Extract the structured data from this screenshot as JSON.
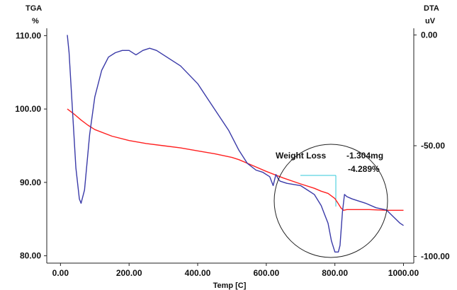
{
  "chart_data": {
    "type": "line",
    "title": "",
    "xlabel": "Temp  [C]",
    "left_axis": {
      "title": "TGA",
      "unit": "%",
      "ylim": [
        79,
        111
      ],
      "ticks": [
        {
          "v": 110,
          "t": "110.00"
        },
        {
          "v": 100,
          "t": "100.00"
        },
        {
          "v": 90,
          "t": "90.00"
        },
        {
          "v": 80,
          "t": "80.00"
        }
      ]
    },
    "right_axis": {
      "title": "DTA",
      "unit": "uV",
      "ylim": [
        -103,
        3
      ],
      "ticks": [
        {
          "v": 0,
          "t": "0.00"
        },
        {
          "v": -50,
          "t": "-50.00"
        },
        {
          "v": -100,
          "t": "-100.00"
        }
      ]
    },
    "xlim": [
      -40,
      1030
    ],
    "xticks": [
      {
        "v": 0,
        "t": "0.00"
      },
      {
        "v": 200,
        "t": "200.00"
      },
      {
        "v": 400,
        "t": "400.00"
      },
      {
        "v": 600,
        "t": "600.00"
      },
      {
        "v": 800,
        "t": "800.00"
      },
      {
        "v": 1000,
        "t": "1000.00"
      }
    ],
    "grid": false,
    "legend": "none",
    "series": [
      {
        "axis": "left",
        "color": "#ff2020",
        "x": [
          20,
          40,
          60,
          80,
          100,
          150,
          200,
          250,
          300,
          350,
          400,
          450,
          500,
          520,
          550,
          600,
          650,
          700,
          740,
          760,
          780,
          800,
          810,
          818,
          825,
          835,
          850,
          900,
          950,
          1000
        ],
        "y": [
          100.0,
          99.3,
          98.5,
          97.8,
          97.2,
          96.3,
          95.7,
          95.3,
          95.0,
          94.7,
          94.3,
          93.9,
          93.4,
          93.1,
          92.5,
          91.5,
          90.6,
          89.8,
          89.2,
          88.8,
          88.5,
          87.8,
          87.1,
          86.5,
          86.2,
          86.3,
          86.3,
          86.3,
          86.2,
          86.2
        ]
      },
      {
        "axis": "right",
        "color": "#3a3aa8",
        "x": [
          20,
          25,
          35,
          45,
          55,
          60,
          70,
          85,
          100,
          120,
          140,
          160,
          180,
          200,
          220,
          240,
          260,
          280,
          300,
          350,
          400,
          430,
          460,
          490,
          520,
          545,
          570,
          590,
          610,
          620,
          628,
          635,
          640,
          660,
          700,
          720,
          740,
          760,
          770,
          780,
          790,
          800,
          810,
          815,
          822,
          828,
          835,
          850,
          870,
          890,
          920,
          950,
          970,
          990,
          1000
        ],
        "y": [
          0,
          -8,
          -34,
          -60,
          -74,
          -76,
          -70,
          -45,
          -28,
          -16,
          -10,
          -8,
          -7,
          -7,
          -9,
          -7,
          -6,
          -7,
          -9,
          -14,
          -22,
          -29,
          -36,
          -43,
          -52,
          -58,
          -61,
          -62,
          -64,
          -68,
          -63,
          -65,
          -66,
          -67,
          -68,
          -70,
          -72,
          -77,
          -81,
          -85,
          -93,
          -98,
          -98,
          -95,
          -80,
          -72,
          -73,
          -74,
          -75,
          -76,
          -78,
          -79,
          -82,
          -85,
          -86
        ]
      }
    ],
    "annotations": {
      "label": "Weight Loss",
      "value_mg": "-1.304mg",
      "value_pct": "-4.289%"
    }
  }
}
